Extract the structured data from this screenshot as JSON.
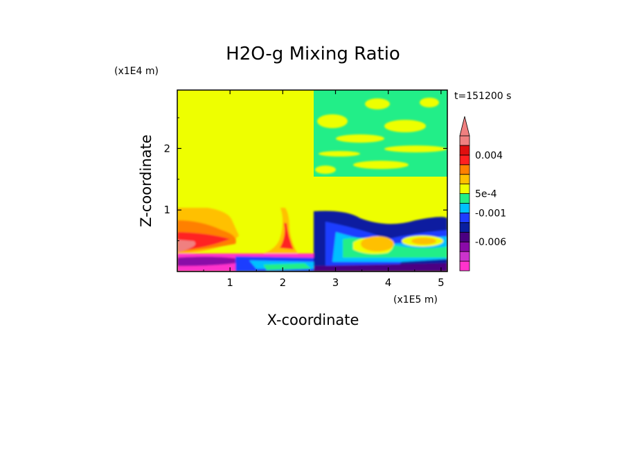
{
  "chart_data": {
    "type": "heatmap",
    "title": "H2O-g Mixing Ratio",
    "xlabel": "X-coordinate",
    "ylabel": "Z-coordinate",
    "x_unit": "(x1E5 m)",
    "y_unit": "(x1E4 m)",
    "time_label": "t=151200 s",
    "xlim": [
      0,
      5.12
    ],
    "ylim": [
      0,
      2.95
    ],
    "x_ticks": [
      "1",
      "2",
      "3",
      "4",
      "5"
    ],
    "x_tick_values": [
      1,
      2,
      3,
      4,
      5
    ],
    "y_ticks": [
      "1",
      "2"
    ],
    "y_tick_values": [
      1,
      2
    ],
    "colorbar": {
      "colors": [
        "#ff33cc",
        "#cc33cc",
        "#8a0aa8",
        "#4b0082",
        "#0a1fa0",
        "#1e3cff",
        "#00c0ff",
        "#22ee88",
        "#eeff00",
        "#ffc000",
        "#ff8000",
        "#ff2020",
        "#e01010",
        "#f08080"
      ],
      "extend": "max",
      "labels": [
        {
          "text": "0.004",
          "level": 0.004
        },
        {
          "text": "5e-4",
          "level": 0.0005
        },
        {
          "text": "-0.001",
          "level": -0.001
        },
        {
          "text": "-0.006",
          "level": -0.006
        }
      ]
    }
  }
}
